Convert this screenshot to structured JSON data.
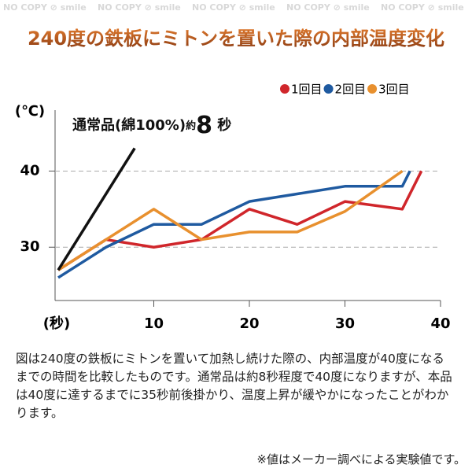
{
  "watermark": "NO COPY ⊘ smile",
  "chart_data": {
    "type": "line",
    "title": "240度の鉄板にミトンを置いた際の内部温度変化",
    "y_label": "(℃)",
    "x_label": "(秒)",
    "xlim": [
      0,
      40
    ],
    "xticks": [
      10,
      20,
      30,
      40
    ],
    "ylim": [
      23,
      48
    ],
    "yticks": [
      30,
      40
    ],
    "grid": true,
    "legend": "top-right",
    "series": [
      {
        "name": "1回目",
        "color": "#d0262b",
        "x": [
          0,
          5,
          10,
          15,
          20,
          25,
          30,
          36,
          38
        ],
        "values": [
          27,
          31,
          30,
          31,
          35,
          33,
          36,
          35,
          40
        ]
      },
      {
        "name": "2回目",
        "color": "#1f5aa0",
        "x": [
          0,
          5,
          10,
          15,
          20,
          25,
          30,
          36,
          36.8
        ],
        "values": [
          26,
          30,
          33,
          33,
          36,
          37,
          38,
          38,
          40
        ]
      },
      {
        "name": "3回目",
        "color": "#e8902e",
        "x": [
          0,
          5,
          10,
          15,
          20,
          25,
          30,
          36
        ],
        "values": [
          27,
          31,
          35,
          31,
          32,
          32,
          34.7,
          40
        ]
      }
    ],
    "reference": {
      "label": "通常品(綿100%)",
      "prefix": "約",
      "seconds": "8",
      "suffix": "秒",
      "color": "#111111",
      "x": [
        0,
        8
      ],
      "values": [
        27,
        43
      ]
    }
  },
  "description": "図は240度の鉄板にミトンを置いて加熱し続けた際の、内部温度が40度になるまでの時間を比較したものです。通常品は約8秒程度で40度になりますが、本品は40度に達するまでに35秒前後掛かり、温度上昇が緩やかになったことがわかります。",
  "note": "※値はメーカー調べによる実験値です。"
}
